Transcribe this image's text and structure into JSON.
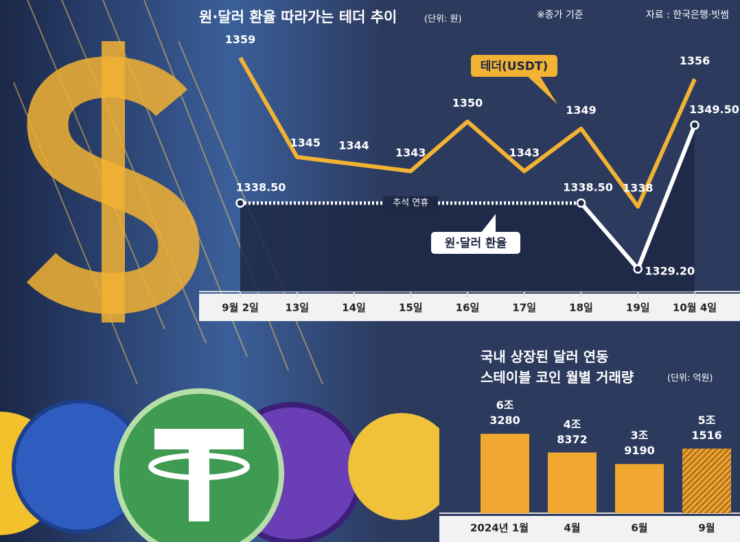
{
  "chart_data": [
    {
      "type": "line",
      "title": "원·달러 환율 따라가는 테더 추이",
      "unit": "(단위: 원)",
      "note": "※종가 기준",
      "source": "자료 : 한국은행·빗썸",
      "annotation": "추석 연휴",
      "categories": [
        "9월 2일",
        "13일",
        "14일",
        "15일",
        "16일",
        "17일",
        "18일",
        "19일",
        "10월 4일"
      ],
      "ylim": [
        1326,
        1363
      ],
      "series": [
        {
          "name": "테더(USDT)",
          "color": "#f2b233",
          "values": [
            1359,
            1345,
            1344,
            1343,
            1350,
            1343,
            1349,
            1338,
            1356
          ]
        },
        {
          "name": "원·달러 환율",
          "color": "#ffffff",
          "values": [
            1338.5,
            null,
            null,
            null,
            null,
            null,
            1338.5,
            1329.2,
            1349.5
          ],
          "value_labels": [
            "1338.50",
            null,
            null,
            null,
            null,
            null,
            "1338.50",
            "1329.20",
            "1349.50"
          ]
        }
      ]
    },
    {
      "type": "bar",
      "title": "국내 상장된 달러 연동\n스테이블 코인 월별 거래량",
      "unit": "(단위: 억원)",
      "categories": [
        "2024년 1월",
        "4월",
        "6월",
        "9월"
      ],
      "values": [
        63280,
        48372,
        39190,
        51516
      ],
      "value_labels": [
        "6조\n3280",
        "4조\n8372",
        "3조\n9190",
        "5조\n1516"
      ],
      "color": "#f0a830",
      "hatched": [
        false,
        false,
        false,
        true
      ],
      "ylim": [
        0,
        70000
      ]
    }
  ]
}
